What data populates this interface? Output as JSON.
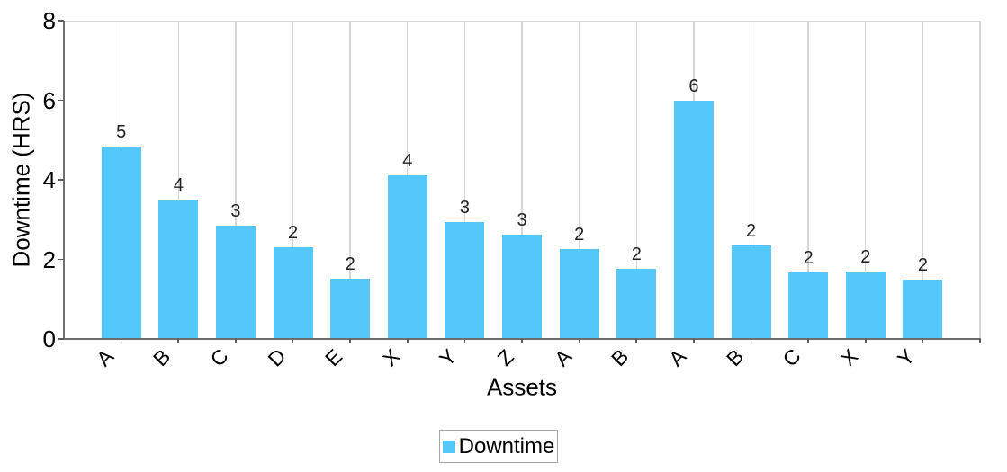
{
  "chart_data": {
    "type": "bar",
    "title": "",
    "xlabel": "Assets",
    "ylabel": "Downtime (HRS)",
    "categories": [
      "A",
      "B",
      "C",
      "D",
      "E",
      "X",
      "Y",
      "Z",
      "A",
      "B",
      "A",
      "B",
      "C",
      "X",
      "Y"
    ],
    "series": [
      {
        "name": "Downtime",
        "values": [
          4.83,
          3.51,
          2.85,
          2.3,
          1.52,
          4.12,
          2.93,
          2.63,
          2.26,
          1.76,
          5.98,
          2.35,
          1.67,
          1.69,
          1.5
        ]
      }
    ],
    "bar_labels": [
      "5",
      "4",
      "3",
      "2",
      "2",
      "4",
      "3",
      "3",
      "2",
      "2",
      "6",
      "2",
      "2",
      "2",
      "2"
    ],
    "ylim": [
      0,
      8
    ],
    "yticks": [
      0,
      2,
      4,
      6,
      8
    ],
    "grid": "vertical-category-gridlines",
    "legend": {
      "position": "bottom",
      "entries": [
        "Downtime"
      ]
    },
    "colors": {
      "bar_fill": "#54C7FB",
      "gridline": "#D6D6D6",
      "axis_line": "#6E6E6E",
      "legend_border": "#A6A6A6",
      "text": "#000000",
      "background": "#FFFFFF"
    }
  }
}
